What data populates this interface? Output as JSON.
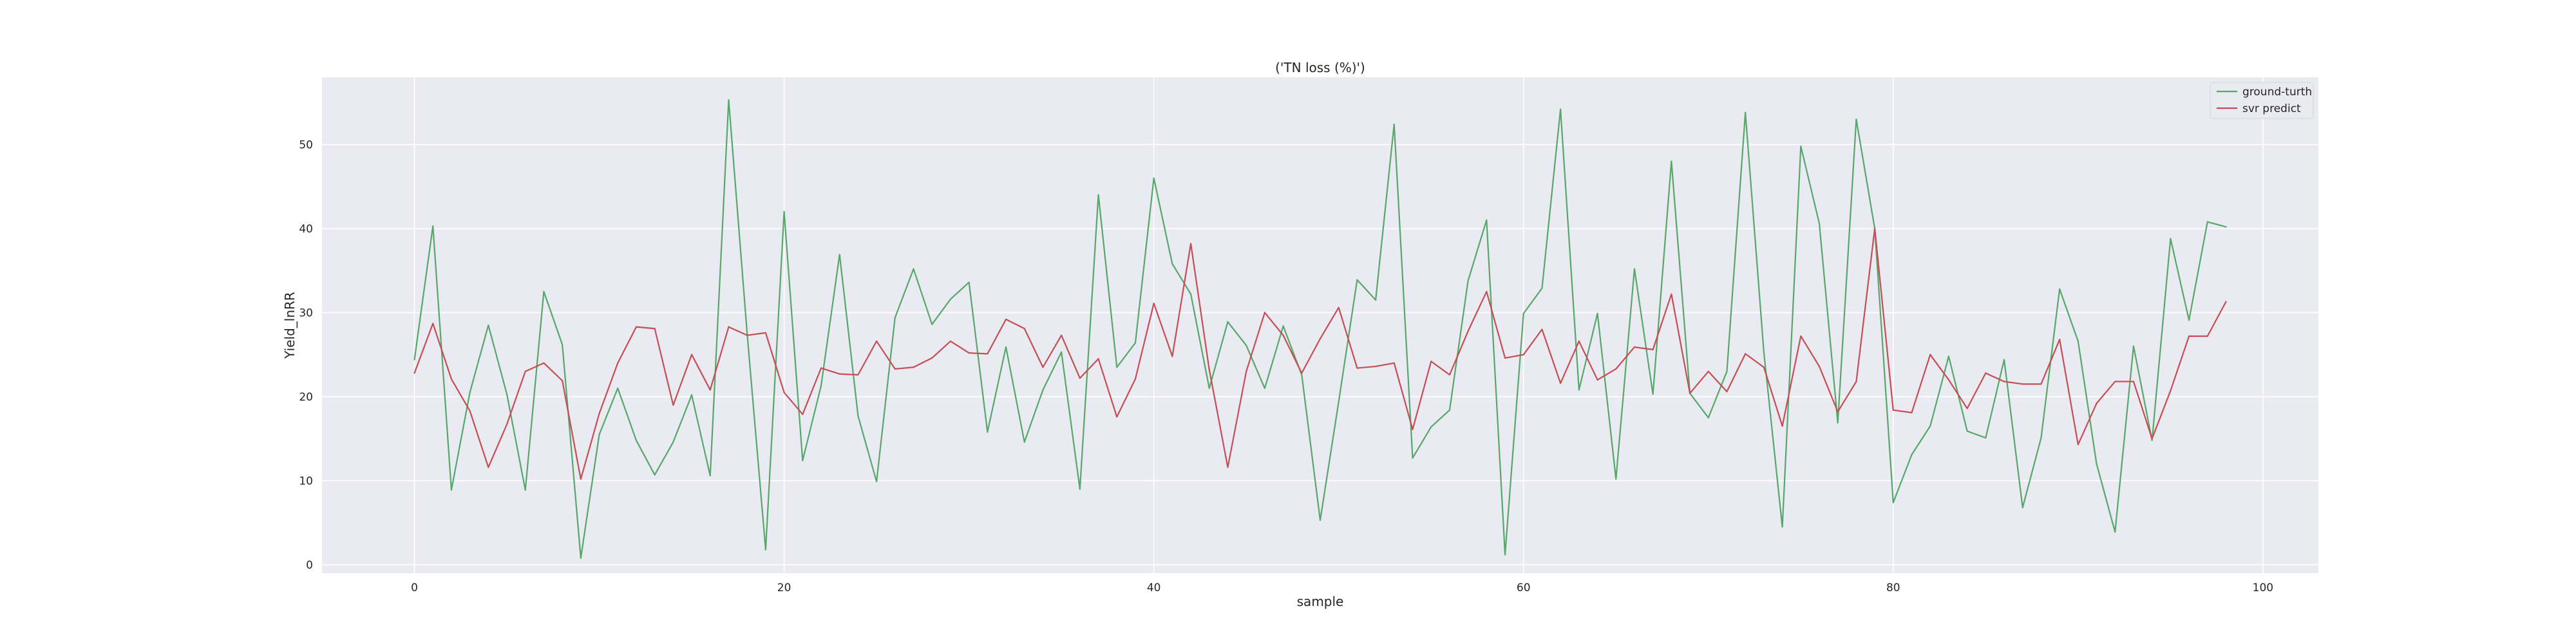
{
  "chart_data": {
    "type": "line",
    "title": "('TN loss (%)')",
    "xlabel": "sample",
    "ylabel": "Yield_lnRR",
    "xlim": [
      -5,
      103
    ],
    "ylim": [
      -1,
      58
    ],
    "xticks": [
      0,
      20,
      40,
      60,
      80,
      100
    ],
    "yticks": [
      0,
      10,
      20,
      30,
      40,
      50
    ],
    "grid": true,
    "legend_position": "top-right",
    "background_color": "#eaeaf2",
    "series": [
      {
        "name": "ground-turth",
        "color": "#55a868",
        "x": [
          0,
          1,
          2,
          3,
          4,
          5,
          6,
          7,
          8,
          9,
          10,
          11,
          12,
          13,
          14,
          15,
          16,
          17,
          18,
          19,
          20,
          21,
          22,
          23,
          24,
          25,
          26,
          27,
          28,
          29,
          30,
          31,
          32,
          33,
          34,
          35,
          36,
          37,
          38,
          39,
          40,
          41,
          42,
          43,
          44,
          45,
          46,
          47,
          48,
          49,
          50,
          51,
          52,
          53,
          54,
          55,
          56,
          57,
          58,
          59,
          60,
          61,
          62,
          63,
          64,
          65,
          66,
          67,
          68,
          69,
          70,
          71,
          72,
          73,
          74,
          75,
          76,
          77,
          78,
          79,
          80,
          81,
          82,
          83,
          84,
          85,
          86,
          87,
          88,
          89,
          90,
          91,
          92,
          93,
          94,
          95,
          96,
          97,
          98
        ],
        "values": [
          24.4,
          40.3,
          8.9,
          20.5,
          28.5,
          20.3,
          8.9,
          32.5,
          26.2,
          0.8,
          15.5,
          21.0,
          14.8,
          10.7,
          14.6,
          20.2,
          10.6,
          55.3,
          27.5,
          1.8,
          42.0,
          12.4,
          21.3,
          36.9,
          17.7,
          9.9,
          29.4,
          35.2,
          28.6,
          31.6,
          33.6,
          15.8,
          25.9,
          14.6,
          20.8,
          25.3,
          9.0,
          44.0,
          23.5,
          26.4,
          46.0,
          35.8,
          32.2,
          21.0,
          28.9,
          26.1,
          21.0,
          28.4,
          22.6,
          5.3,
          19.4,
          33.9,
          31.5,
          52.4,
          12.7,
          16.4,
          18.4,
          33.8,
          41.0,
          1.2,
          29.9,
          32.9,
          54.2,
          20.8,
          29.9,
          10.2,
          35.2,
          20.3,
          48.0,
          20.4,
          17.5,
          23.0,
          53.8,
          25.3,
          4.5,
          49.8,
          40.6,
          16.9,
          53.0,
          40.0,
          7.4,
          13.1,
          16.5,
          24.8,
          15.9,
          15.1,
          24.4,
          6.8,
          15.1,
          32.8,
          26.6,
          12.0,
          3.9,
          26.0,
          14.8,
          38.8,
          29.1,
          40.8,
          40.2
        ]
      },
      {
        "name": "svr predict",
        "color": "#c44e52",
        "x": [
          0,
          1,
          2,
          3,
          4,
          5,
          6,
          7,
          8,
          9,
          10,
          11,
          12,
          13,
          14,
          15,
          16,
          17,
          18,
          19,
          20,
          21,
          22,
          23,
          24,
          25,
          26,
          27,
          28,
          29,
          30,
          31,
          32,
          33,
          34,
          35,
          36,
          37,
          38,
          39,
          40,
          41,
          42,
          43,
          44,
          45,
          46,
          47,
          48,
          49,
          50,
          51,
          52,
          53,
          54,
          55,
          56,
          57,
          58,
          59,
          60,
          61,
          62,
          63,
          64,
          65,
          66,
          67,
          68,
          69,
          70,
          71,
          72,
          73,
          74,
          75,
          76,
          77,
          78,
          79,
          80,
          81,
          82,
          83,
          84,
          85,
          86,
          87,
          88,
          89,
          90,
          91,
          92,
          93,
          94,
          95,
          96,
          97,
          98
        ],
        "values": [
          22.8,
          28.7,
          22.1,
          18.3,
          11.6,
          16.7,
          23.0,
          24.0,
          21.9,
          10.2,
          18.0,
          24.0,
          28.3,
          28.1,
          19.0,
          25.0,
          20.8,
          28.3,
          27.3,
          27.6,
          20.5,
          17.9,
          23.4,
          22.7,
          22.6,
          26.6,
          23.3,
          23.5,
          24.6,
          26.6,
          25.2,
          25.1,
          29.2,
          28.1,
          23.5,
          27.3,
          22.2,
          24.5,
          17.6,
          22.1,
          31.1,
          24.8,
          38.2,
          23.2,
          11.6,
          23.0,
          30.0,
          27.3,
          22.8,
          26.9,
          30.6,
          23.4,
          23.6,
          24.0,
          16.1,
          24.2,
          22.6,
          27.8,
          32.5,
          24.6,
          25.0,
          28.0,
          21.6,
          26.6,
          22.0,
          23.3,
          25.9,
          25.6,
          32.2,
          20.4,
          23.0,
          20.6,
          25.1,
          23.5,
          16.5,
          27.2,
          23.6,
          18.2,
          21.8,
          40.0,
          18.4,
          18.1,
          25.0,
          22.0,
          18.6,
          22.8,
          21.8,
          21.5,
          21.5,
          26.8,
          14.3,
          19.2,
          21.8,
          21.8,
          15.0,
          20.7,
          27.2,
          27.2,
          31.3
        ]
      }
    ]
  }
}
